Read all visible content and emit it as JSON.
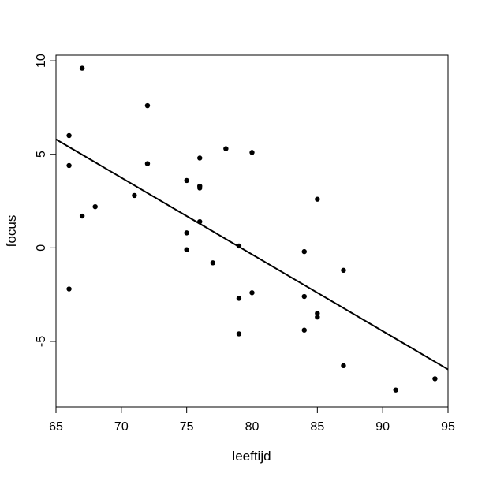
{
  "chart_data": {
    "type": "scatter",
    "xlabel": "leeftijd",
    "ylabel": "focus",
    "xlim": [
      65,
      95
    ],
    "ylim": [
      -8.5,
      10.3
    ],
    "xticks": [
      65,
      70,
      75,
      80,
      85,
      90,
      95
    ],
    "yticks": [
      -5,
      0,
      5,
      10
    ],
    "xtick_labels": [
      "65",
      "70",
      "75",
      "80",
      "85",
      "90",
      "95"
    ],
    "ytick_labels": [
      "-5",
      "0",
      "5",
      "10"
    ],
    "grid": false,
    "points": [
      {
        "x": 66,
        "y": 6.0
      },
      {
        "x": 66,
        "y": 4.4
      },
      {
        "x": 66,
        "y": -2.2
      },
      {
        "x": 67,
        "y": 9.6
      },
      {
        "x": 67,
        "y": 1.7
      },
      {
        "x": 68,
        "y": 2.2
      },
      {
        "x": 71,
        "y": 2.8
      },
      {
        "x": 72,
        "y": 7.6
      },
      {
        "x": 72,
        "y": 4.5
      },
      {
        "x": 75,
        "y": 3.6
      },
      {
        "x": 75,
        "y": 0.8
      },
      {
        "x": 75,
        "y": -0.1
      },
      {
        "x": 76,
        "y": 4.8
      },
      {
        "x": 76,
        "y": 3.3
      },
      {
        "x": 76,
        "y": 3.2
      },
      {
        "x": 76,
        "y": 1.4
      },
      {
        "x": 77,
        "y": -0.8
      },
      {
        "x": 78,
        "y": 5.3
      },
      {
        "x": 79,
        "y": 0.1
      },
      {
        "x": 79,
        "y": -2.7
      },
      {
        "x": 79,
        "y": -4.6
      },
      {
        "x": 80,
        "y": 5.1
      },
      {
        "x": 80,
        "y": -2.4
      },
      {
        "x": 84,
        "y": -0.2
      },
      {
        "x": 84,
        "y": -2.6
      },
      {
        "x": 84,
        "y": -4.4
      },
      {
        "x": 85,
        "y": 2.6
      },
      {
        "x": 85,
        "y": -3.5
      },
      {
        "x": 85,
        "y": -3.7
      },
      {
        "x": 87,
        "y": -1.2
      },
      {
        "x": 87,
        "y": -6.3
      },
      {
        "x": 91,
        "y": -7.6
      },
      {
        "x": 94,
        "y": -7.0
      }
    ],
    "regression_line": {
      "x": [
        65,
        95
      ],
      "y": [
        5.8,
        -6.5
      ]
    }
  }
}
